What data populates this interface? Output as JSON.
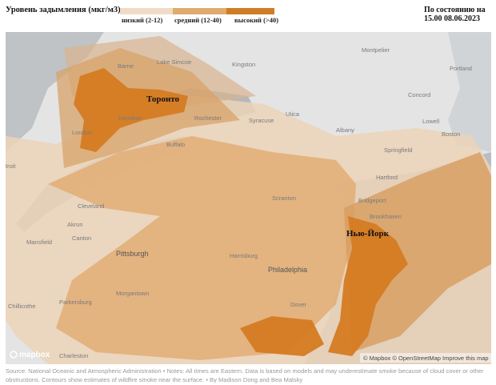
{
  "header": {
    "title": "Уровень задымления (мкг/м3):",
    "timestamp": "По состоянию на 15.00 08.06.2023"
  },
  "legend": {
    "items": [
      {
        "label": "низкий (2-12)",
        "color": "#f0dcc6"
      },
      {
        "label": "средний (12-40)",
        "color": "#e0ab6e"
      },
      {
        "label": "высокий (>40)",
        "color": "#cf7d25"
      }
    ]
  },
  "map": {
    "callouts": [
      "Торонто",
      "Нью-Йорк"
    ],
    "labels": [
      "Barrie",
      "Lake Simcoe",
      "Kingston",
      "Montpelier",
      "Portland",
      "Concord",
      "Lowell",
      "Boston",
      "Syracuse",
      "Utica",
      "Albany",
      "Rochester",
      "Buffalo",
      "Hamilton",
      "London",
      "troit",
      "Springfield",
      "Hartford",
      "Bridgeport",
      "Brookhaven",
      "Scranton",
      "Cleveland",
      "Akron",
      "Canton",
      "Mansfield",
      "Pittsburgh",
      "Harrisburg",
      "Philadelphia",
      "Morgantown",
      "Chillicothe",
      "Parkersburg",
      "Dover",
      "Charleston"
    ],
    "logo": "mapbox",
    "attribution": "© Mapbox © OpenStreetMap Improve this map"
  },
  "footer": {
    "source": "Source: National Oceanic and Atmospheric Administration • Notes: All times are Eastern. Data is based on models and may underestimate smoke because of cloud cover or other obstructions. Contours show estimates of wildfire smoke near the surface. • By Madison Dong and Bea Malsky"
  }
}
